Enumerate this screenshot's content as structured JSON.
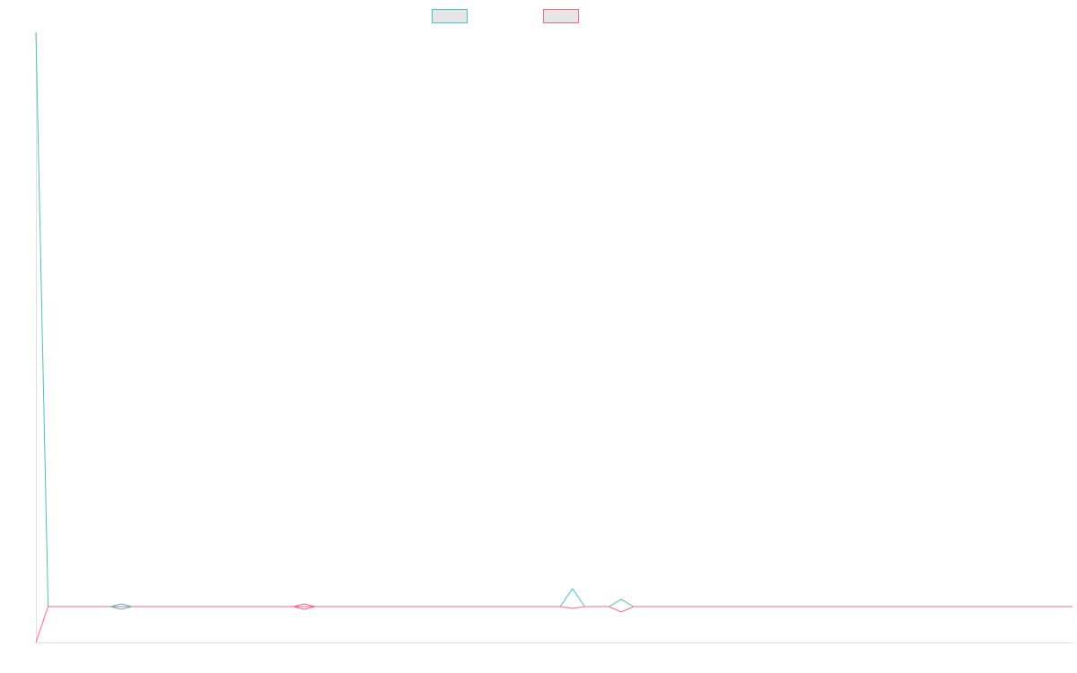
{
  "chart_data": {
    "type": "line",
    "title": "",
    "xlabel": "",
    "ylabel": "",
    "x_points": 86,
    "ylim": [
      -1,
      16
    ],
    "grid": false,
    "legend": {
      "placement": "top-center",
      "entries": [
        {
          "label": "",
          "color": "#4bc0c0",
          "fill": "#e6e6e6"
        },
        {
          "label": "",
          "color": "#ff6384",
          "fill": "#e6e6e6"
        }
      ]
    },
    "series": [
      {
        "color": "#4bc0c0",
        "values": [
          16,
          0,
          0,
          0,
          0,
          0,
          0,
          0,
          0,
          0,
          0,
          0,
          0,
          0,
          0,
          0,
          0,
          0,
          0,
          0,
          0,
          0,
          0,
          0,
          0,
          0,
          0,
          0,
          0,
          0,
          0,
          0,
          0,
          0,
          0,
          0,
          0,
          0,
          0,
          0,
          0,
          0,
          0,
          0,
          0.5,
          0,
          0,
          0,
          0.2,
          0,
          0,
          0,
          0,
          0,
          0,
          0,
          0,
          0,
          0,
          0,
          0,
          0,
          0,
          0,
          0,
          0,
          0,
          0,
          0,
          0,
          0,
          0,
          0,
          0,
          0,
          0,
          0,
          0,
          0,
          0,
          0,
          0,
          0,
          0,
          0,
          0
        ]
      },
      {
        "color": "#ff6384",
        "values": [
          -1,
          0,
          0,
          0,
          0,
          0,
          0,
          0,
          0,
          0,
          0,
          0,
          0,
          0,
          0,
          0,
          0,
          0,
          0,
          0,
          0,
          0,
          0,
          0,
          0,
          0,
          0,
          0,
          0,
          0,
          0,
          0,
          0,
          0,
          0,
          0,
          0,
          0,
          0,
          0,
          0,
          0,
          0,
          0,
          -0.05,
          0,
          0,
          0,
          -0.15,
          0,
          0,
          0,
          0,
          0,
          0,
          0,
          0,
          0,
          0,
          0,
          0,
          0,
          0,
          0,
          0,
          0,
          0,
          0,
          0,
          0,
          0,
          0,
          0,
          0,
          0,
          0,
          0,
          0,
          0,
          0,
          0,
          0,
          0,
          0,
          0,
          0
        ]
      }
    ]
  }
}
